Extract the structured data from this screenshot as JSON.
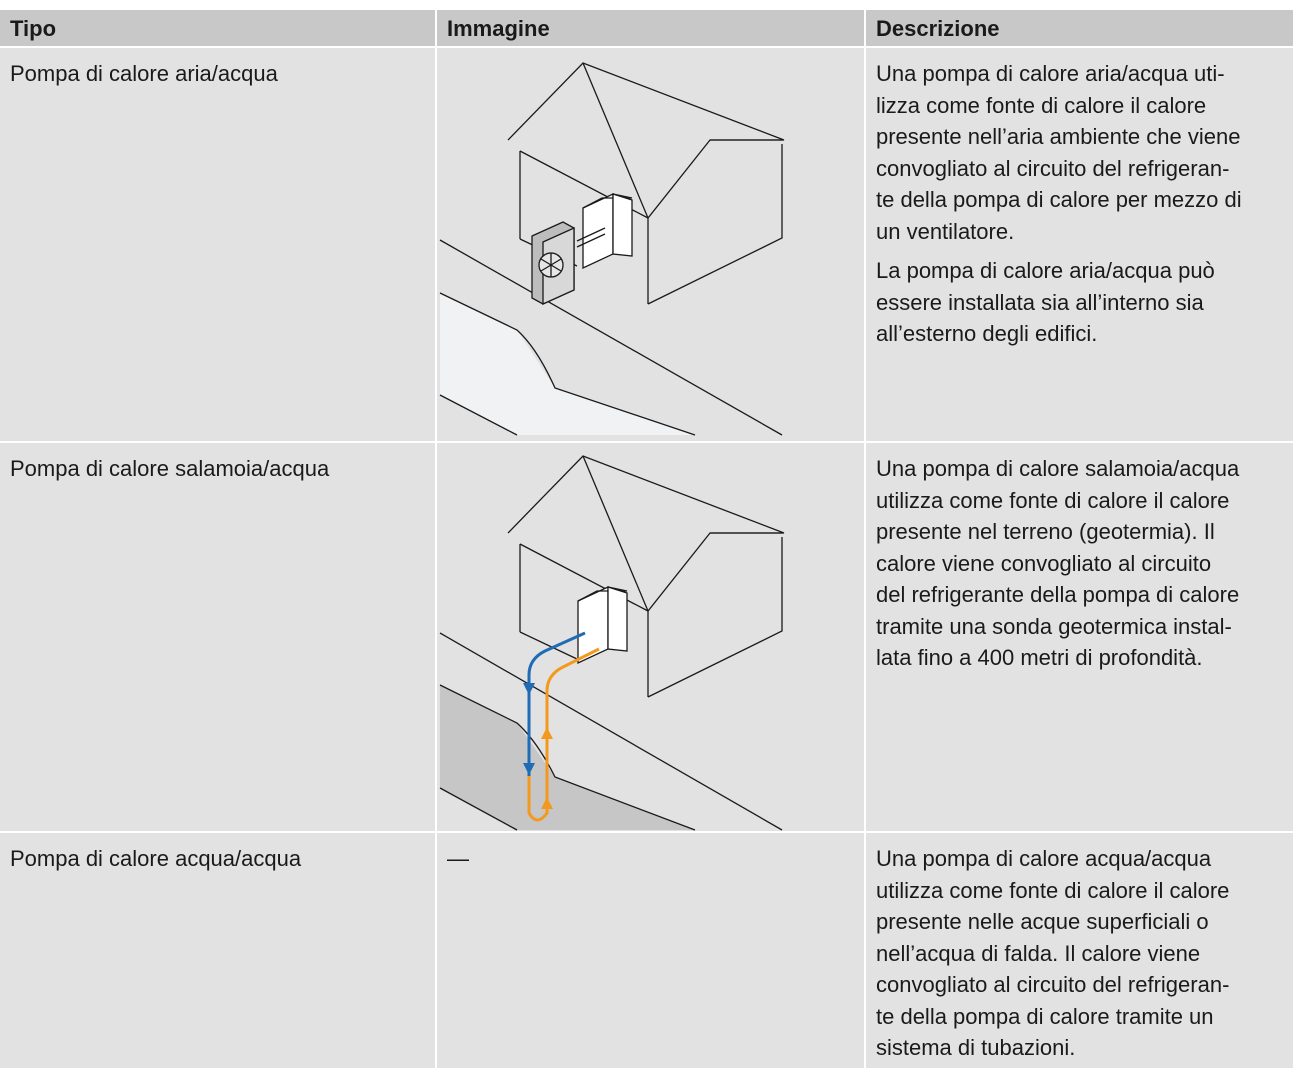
{
  "table": {
    "headers": [
      "Tipo",
      "Immagine",
      "Descrizione"
    ],
    "rows": [
      {
        "type": "Pompa di calore aria/acqua",
        "description": [
          [
            "Una pompa di calore aria/acqua uti-",
            "lizza come fonte di calore il calore",
            "presente nell’aria ambiente che viene",
            "convogliato al circuito del refrigeran-",
            "te della pompa di calore per mezzo di",
            "un ventilatore."
          ],
          [
            "La pompa di calore aria/acqua può",
            "essere installata sia all’interno sia",
            "all’esterno degli edifici."
          ]
        ]
      },
      {
        "type": "Pompa di calore salamoia/acqua",
        "description": [
          [
            "Una pompa di calore salamoia/acqua",
            "utilizza come fonte di calore il calore",
            "presente nel terreno (geotermia). Il",
            "calore viene convogliato al circuito",
            "del refrigerante della pompa di calore",
            "tramite una sonda geotermica instal-",
            "lata fino a 400 metri di profondità."
          ]
        ]
      },
      {
        "type": "Pompa di calore acqua/acqua",
        "image": "—",
        "description": [
          [
            "Una pompa di calore acqua/acqua",
            "utilizza come fonte di calore il calore",
            "presente nelle acque superficiali o",
            "nell’acqua di falda. Il calore viene",
            "convogliato al circuito del refrigeran-",
            "te della pompa di calore tramite un",
            "sistema di tubazioni."
          ]
        ]
      }
    ]
  }
}
